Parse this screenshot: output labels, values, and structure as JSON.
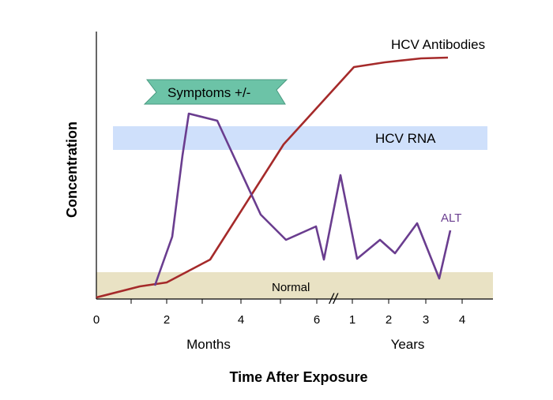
{
  "chart_data": {
    "type": "line",
    "title": "",
    "xlabel": "Time After Exposure",
    "ylabel": "Concentration",
    "x_axis_sections": [
      {
        "label": "Months",
        "ticks": [
          "0",
          "2",
          "4",
          "6"
        ]
      },
      {
        "label": "Years",
        "ticks": [
          "1",
          "2",
          "3",
          "4"
        ]
      }
    ],
    "axis_break_marker": "//",
    "series": [
      {
        "name": "HCV Antibodies",
        "color": "#a52a2a",
        "points": [
          {
            "x": "0 months",
            "y": 0.0
          },
          {
            "x": "1.2 months",
            "y": 0.05
          },
          {
            "x": "2 months",
            "y": 0.07
          },
          {
            "x": "3.2 months",
            "y": 0.16
          },
          {
            "x": "5.2 months",
            "y": 0.6
          },
          {
            "x": "1 year",
            "y": 0.9
          },
          {
            "x": "1.8 years",
            "y": 0.92
          },
          {
            "x": "2.8 years",
            "y": 0.93
          },
          {
            "x": "3.6 years",
            "y": 0.93
          }
        ]
      },
      {
        "name": "ALT",
        "color": "#6a3d8f",
        "points": [
          {
            "x": "1.6 months",
            "y": 0.05
          },
          {
            "x": "2.1 months",
            "y": 0.24
          },
          {
            "x": "2.4 months",
            "y": 0.55
          },
          {
            "x": "2.6 months",
            "y": 0.72
          },
          {
            "x": "3.3 months",
            "y": 0.69
          },
          {
            "x": "4.5 months",
            "y": 0.32
          },
          {
            "x": "5.3 months",
            "y": 0.23
          },
          {
            "x": "6 months",
            "y": 0.27
          },
          {
            "x": "6.2 months",
            "y": 0.15
          },
          {
            "x": "0.9 years",
            "y": 0.47
          },
          {
            "x": "1.1 years",
            "y": 0.15
          },
          {
            "x": "1.8 years",
            "y": 0.22
          },
          {
            "x": "2.2 years",
            "y": 0.17
          },
          {
            "x": "2.8 years",
            "y": 0.28
          },
          {
            "x": "3.3 years",
            "y": 0.07
          },
          {
            "x": "3.7 years",
            "y": 0.26
          }
        ]
      }
    ],
    "bands": [
      {
        "label": "HCV RNA",
        "color": "#cfe0fb",
        "x_start": "0.5 months",
        "x_end": "4.7 years",
        "y_range": [
          0.6,
          0.69
        ]
      },
      {
        "label": "Normal",
        "color": "#e9e2c4",
        "x_start": "0 months",
        "x_end": "4.7 years",
        "y_range": [
          0.0,
          0.09
        ]
      }
    ],
    "annotations": [
      {
        "text": "Symptoms +/-",
        "color": "#5cb89a",
        "x_range": [
          "1.4 months",
          "5 months"
        ],
        "y": 0.81
      }
    ],
    "grid": false,
    "legend": "none (series labelled inline)"
  }
}
